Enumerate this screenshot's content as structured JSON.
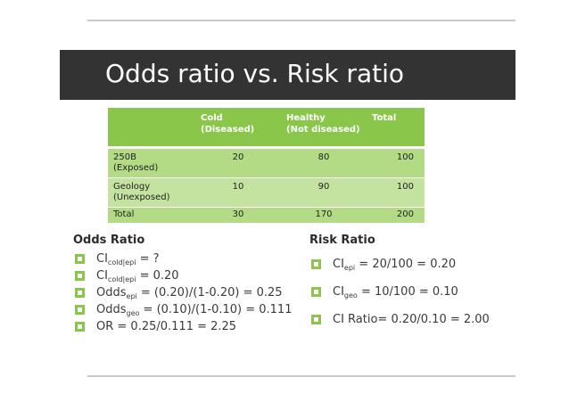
{
  "title": "Odds ratio vs. Risk ratio",
  "table": {
    "headers": [
      "",
      "Cold\n(Diseased)",
      "Healthy\n(Not diseased)",
      "Total"
    ],
    "rows": [
      {
        "label": "250B\n(Exposed)",
        "cold": "20",
        "healthy": "80",
        "total": "100"
      },
      {
        "label": "Geology\n(Unexposed)",
        "cold": "10",
        "healthy": "90",
        "total": "100"
      },
      {
        "label": "Total",
        "cold": "30",
        "healthy": "170",
        "total": "200"
      }
    ]
  },
  "odds": {
    "heading": "Odds Ratio",
    "items": [
      {
        "pre": "CI",
        "sub": "cold|epi",
        "post": " = ?"
      },
      {
        "pre": "CI",
        "sub": "cold|epi",
        "post": " = 0.20"
      },
      {
        "pre": "Odds",
        "sub": "epi",
        "post": " = (0.20)/(1-0.20) = 0.25"
      },
      {
        "pre": "Odds",
        "sub": "geo",
        "post": " = (0.10)/(1-0.10) = 0.111"
      },
      {
        "pre": "OR = 0.25/0.111 = 2.25",
        "sub": "",
        "post": ""
      }
    ]
  },
  "risk": {
    "heading": "Risk Ratio",
    "items": [
      {
        "pre": "CI",
        "sub": "epi",
        "post": "  = 20/100 = 0.20"
      },
      {
        "pre": "CI",
        "sub": "geo",
        "post": "  = 10/100 = 0.10"
      },
      {
        "pre": "CI Ratio= 0.20/0.10 = 2.00",
        "sub": "",
        "post": ""
      }
    ]
  },
  "colors": {
    "accent": "#8ac64a",
    "title_bar": "#333333"
  }
}
